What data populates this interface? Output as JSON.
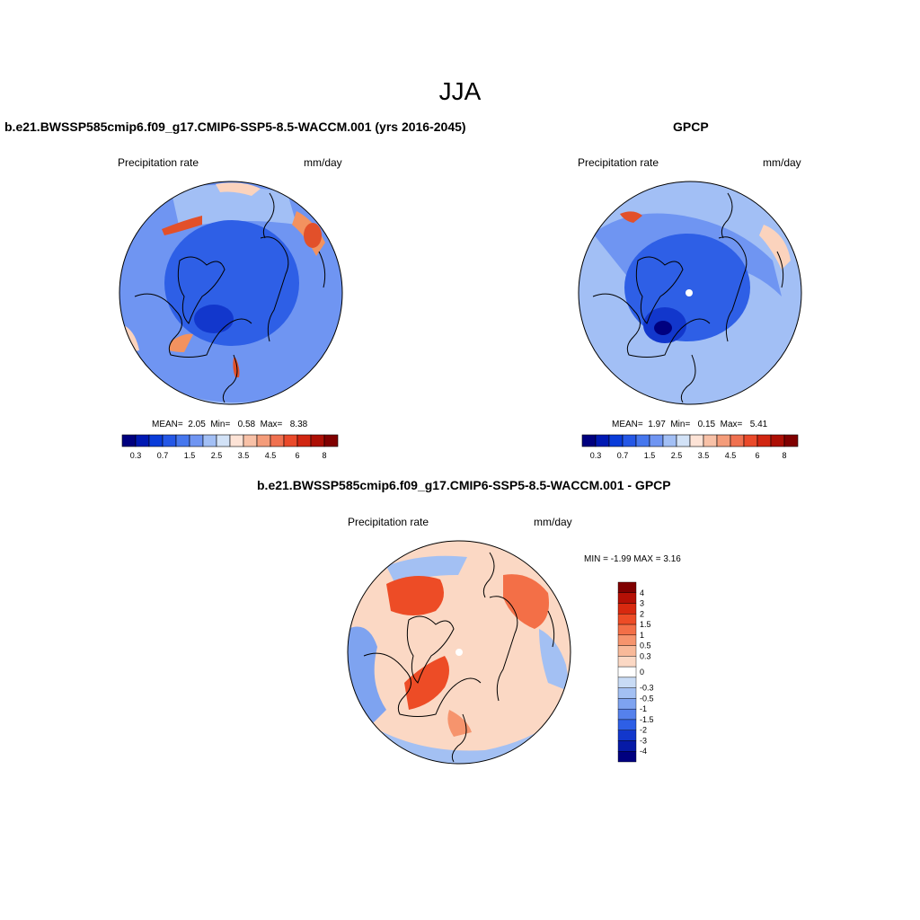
{
  "figure": {
    "title": "JJA",
    "panels": [
      {
        "title": "b.e21.BWSSP585cmip6.f09_g17.CMIP6-SSP5-8.5-WACCM.001 (yrs 2016-2045)",
        "left_label": "Precipitation rate",
        "right_label": "mm/day",
        "stats": {
          "mean_label": "MEAN=",
          "mean": "2.05",
          "min_label": "Min=",
          "min": "0.58",
          "max_label": "Max=",
          "max": "8.38"
        }
      },
      {
        "title": "GPCP",
        "left_label": "Precipitation rate",
        "right_label": "mm/day",
        "stats": {
          "mean_label": "MEAN=",
          "mean": "1.97",
          "min_label": "Min=",
          "min": "0.15",
          "max_label": "Max=",
          "max": "5.41"
        }
      },
      {
        "title": "b.e21.BWSSP585cmip6.f09_g17.CMIP6-SSP5-8.5-WACCM.001 - GPCP",
        "left_label": "Precipitation rate",
        "right_label": "mm/day",
        "stats_text": "MIN =  -1.99 MAX =   3.16"
      }
    ]
  },
  "colorbar_abs": {
    "colors": [
      "#00007f",
      "#0019b3",
      "#0a3cd9",
      "#2457e6",
      "#4677ee",
      "#6f95f2",
      "#a2bff5",
      "#d2e2f7",
      "#fde3d6",
      "#f8c1a7",
      "#f49c7a",
      "#f07150",
      "#ea4a2a",
      "#d12611",
      "#ad0f05",
      "#800000"
    ],
    "tick_labels": [
      "0.3",
      "0.7",
      "1.5",
      "2.5",
      "3.5",
      "4.5",
      "6",
      "8"
    ]
  },
  "colorbar_diff": {
    "colors": [
      "#800000",
      "#b51005",
      "#d8290f",
      "#ed4c26",
      "#f36f47",
      "#f6946d",
      "#f8b999",
      "#fbd8c4",
      "#ffffff",
      "#c8dbf5",
      "#a3c0f3",
      "#7ea3f0",
      "#5581ec",
      "#2e5fe6",
      "#1237cc",
      "#061aa6",
      "#00007f"
    ],
    "tick_labels": [
      "4",
      "3",
      "2",
      "1.5",
      "1",
      "0.5",
      "0.3",
      "0",
      "-0.3",
      "-0.5",
      "-1",
      "-1.5",
      "-2",
      "-3",
      "-4"
    ]
  },
  "map_palette": {
    "deep_blue": "#1a3fd6",
    "mid_blue": "#3f6ff0",
    "light_blue": "#8fb3f5",
    "pale_blue": "#c9dcf8",
    "pale_orange": "#fbd3bd",
    "orange": "#f3925f",
    "red": "#e2502a",
    "coastline": "#000000"
  }
}
